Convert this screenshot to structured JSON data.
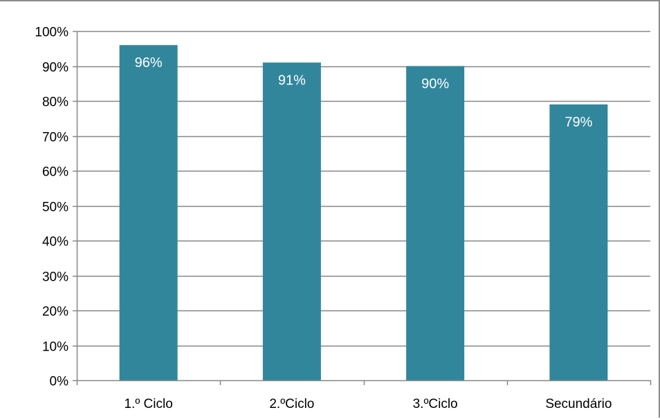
{
  "chart_data": {
    "type": "bar",
    "title": "",
    "xlabel": "",
    "ylabel": "",
    "categories": [
      "1.º Ciclo",
      "2.ºCiclo",
      "3.ºCiclo",
      "Secundário"
    ],
    "values": [
      96,
      91,
      90,
      79
    ],
    "data_labels": [
      "96%",
      "91%",
      "90%",
      "79%"
    ],
    "y_ticks": [
      0,
      10,
      20,
      30,
      40,
      50,
      60,
      70,
      80,
      90,
      100
    ],
    "y_tick_labels": [
      "0%",
      "10%",
      "20%",
      "30%",
      "40%",
      "50%",
      "60%",
      "70%",
      "80%",
      "90%",
      "100%"
    ],
    "ylim": [
      0,
      100
    ],
    "grid": true,
    "legend": "none",
    "bar_color": "#31869b",
    "gridline_color": "#868686",
    "axis_color": "#868686",
    "label_color": "#ffffff"
  }
}
